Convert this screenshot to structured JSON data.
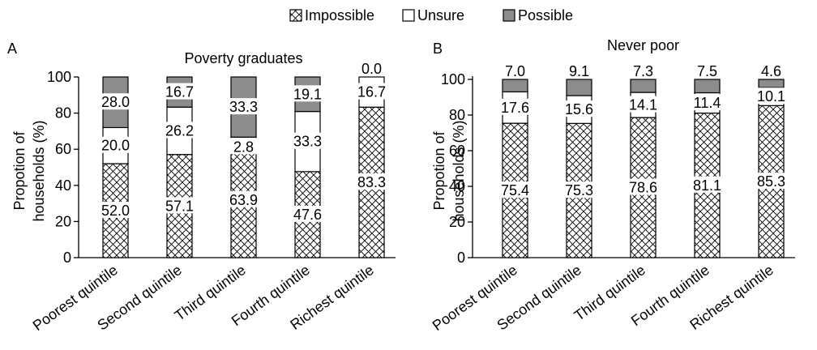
{
  "legend": {
    "items": [
      {
        "name": "Impossible",
        "pattern": "crosshatch"
      },
      {
        "name": "Unsure",
        "color": "#ffffff"
      },
      {
        "name": "Possible",
        "color": "#8c8c8c"
      }
    ]
  },
  "chart_data": [
    {
      "type": "bar",
      "stacked": true,
      "panel": "A",
      "title": "Poverty graduates",
      "ylabel": "Propotion of households (%)",
      "ylabel_lines": [
        "Propotion of",
        "households (%)"
      ],
      "xlabel": "",
      "ylim": [
        0,
        100
      ],
      "yticks": [
        0,
        20,
        40,
        60,
        80,
        100
      ],
      "categories": [
        "Poorest quintile",
        "Second quintile",
        "Third quintile",
        "Fourth quintile",
        "Richest quintile"
      ],
      "series": [
        {
          "name": "Impossible",
          "values": [
            52.0,
            57.1,
            63.9,
            47.6,
            83.3
          ],
          "labels": [
            "52.0",
            "57.1",
            "63.9",
            "47.6",
            "83.3"
          ]
        },
        {
          "name": "Unsure",
          "values": [
            20.0,
            26.2,
            2.8,
            33.3,
            16.7
          ],
          "labels": [
            "20.0",
            "26.2",
            "2.8",
            "33.3",
            "16.7"
          ]
        },
        {
          "name": "Possible",
          "values": [
            28.0,
            16.7,
            33.3,
            19.1,
            0.0
          ],
          "labels": [
            "28.0",
            "16.7",
            "33.3",
            "19.1",
            "0.0"
          ]
        }
      ],
      "grid": false
    },
    {
      "type": "bar",
      "stacked": true,
      "panel": "B",
      "title": "Never poor",
      "ylabel": "Propotion of households (%)",
      "ylabel_lines": [
        "Propotion of",
        "households (%)"
      ],
      "xlabel": "",
      "ylim": [
        0,
        100
      ],
      "yticks": [
        0,
        20,
        40,
        60,
        80,
        100
      ],
      "categories": [
        "Poorest quintile",
        "Second quintile",
        "Third quintile",
        "Fourth quintile",
        "Richest quintile"
      ],
      "series": [
        {
          "name": "Impossible",
          "values": [
            75.4,
            75.3,
            78.6,
            81.1,
            85.3
          ],
          "labels": [
            "75.4",
            "75.3",
            "78.6",
            "81.1",
            "85.3"
          ]
        },
        {
          "name": "Unsure",
          "values": [
            17.6,
            15.6,
            14.1,
            11.4,
            10.1
          ],
          "labels": [
            "17.6",
            "15.6",
            "14.1",
            "11.4",
            "10.1"
          ]
        },
        {
          "name": "Possible",
          "values": [
            7.0,
            9.1,
            7.3,
            7.5,
            4.6
          ],
          "labels": [
            "7.0",
            "9.1",
            "7.3",
            "7.5",
            "4.6"
          ]
        }
      ],
      "grid": false
    }
  ]
}
